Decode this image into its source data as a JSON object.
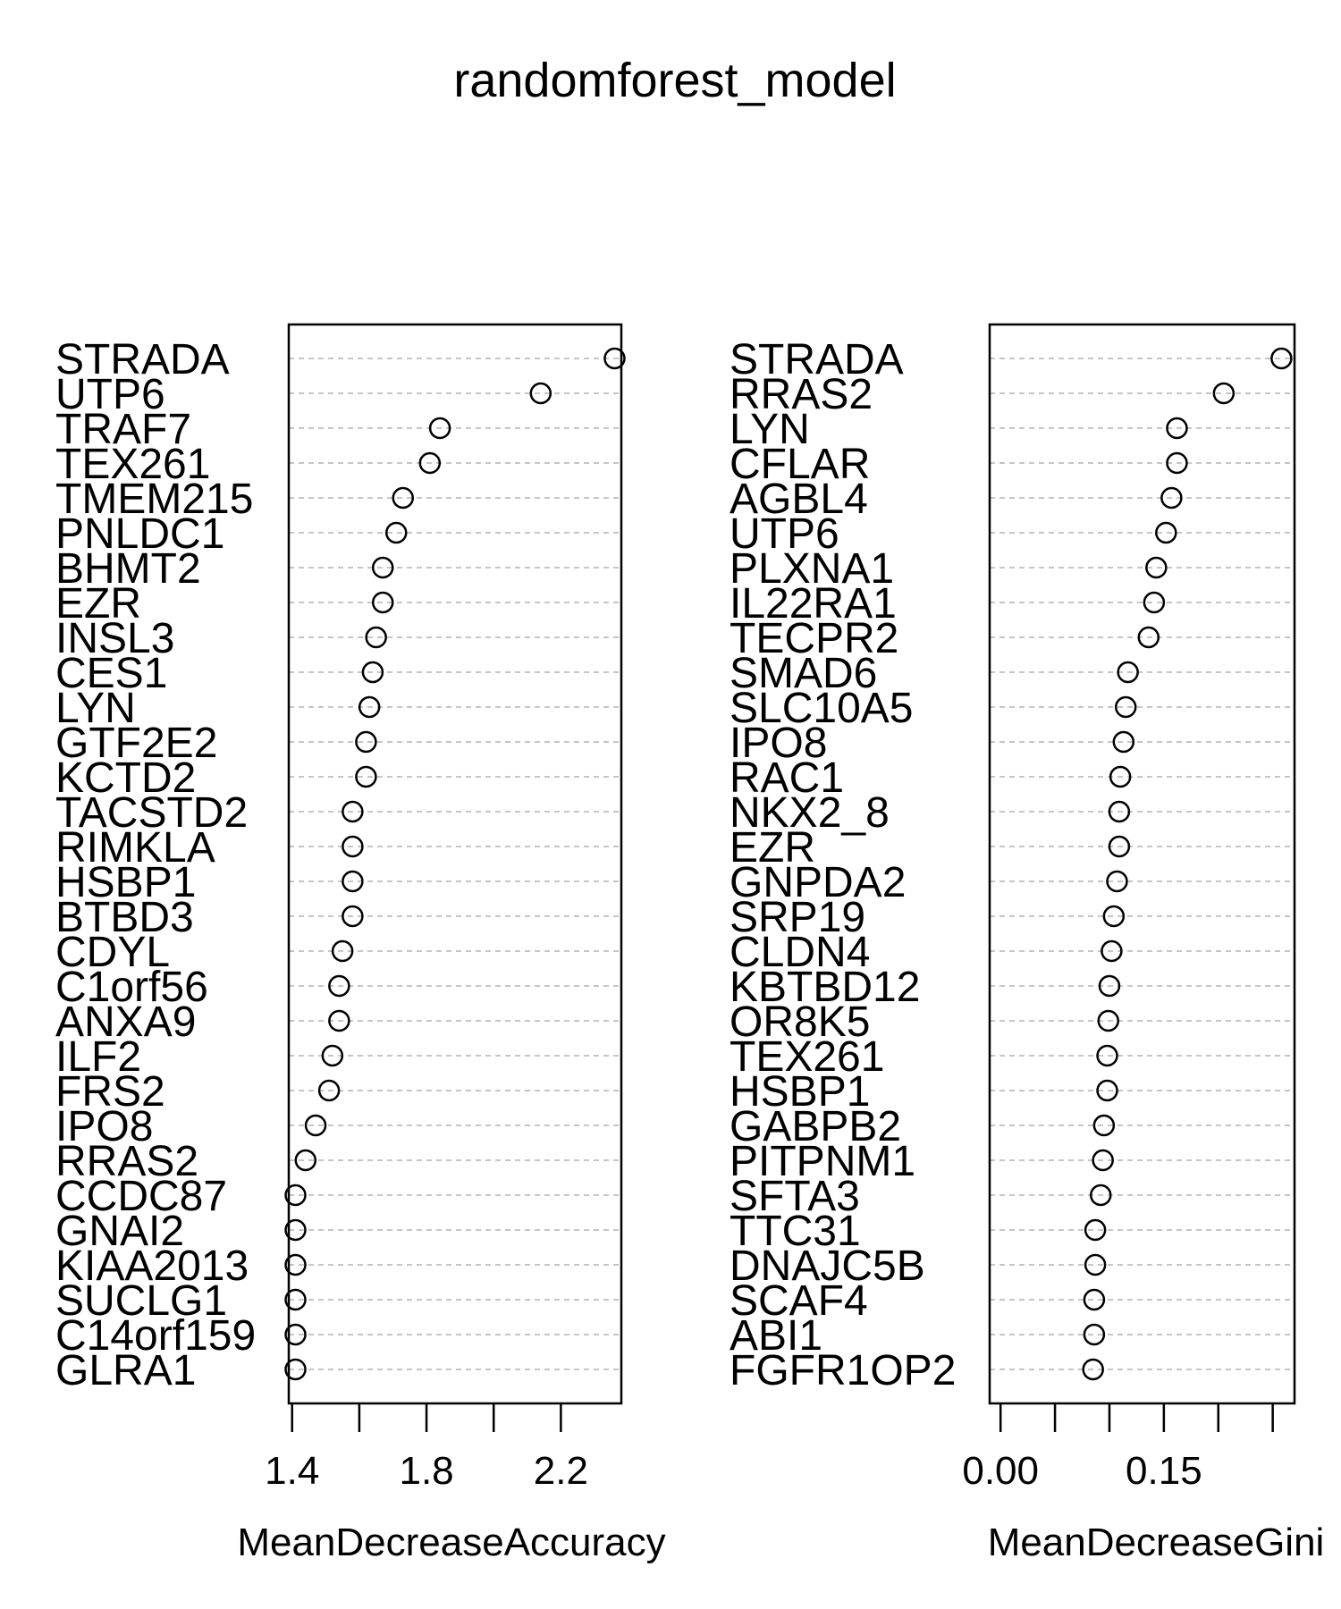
{
  "title": "randomforest_model",
  "chart_data": [
    {
      "type": "scatter",
      "xlabel": "MeanDecreaseAccuracy",
      "xlim": [
        1.39,
        2.38
      ],
      "xticks": [
        1.4,
        1.6,
        1.8,
        2.0,
        2.2
      ],
      "xtick_labels": [
        "1.4",
        "1.8",
        "2.2"
      ],
      "grid": "dashed-horizontal",
      "categories": [
        "STRADA",
        "UTP6",
        "TRAF7",
        "TEX261",
        "TMEM215",
        "PNLDC1",
        "BHMT2",
        "EZR",
        "INSL3",
        "CES1",
        "LYN",
        "GTF2E2",
        "KCTD2",
        "TACSTD2",
        "RIMKLA",
        "HSBP1",
        "BTBD3",
        "CDYL",
        "C1orf56",
        "ANXA9",
        "ILF2",
        "FRS2",
        "IPO8",
        "RRAS2",
        "CCDC87",
        "GNAI2",
        "KIAA2013",
        "SUCLG1",
        "C14orf159",
        "GLRA1"
      ],
      "values": [
        2.36,
        2.14,
        1.84,
        1.81,
        1.73,
        1.71,
        1.67,
        1.67,
        1.65,
        1.64,
        1.63,
        1.62,
        1.62,
        1.58,
        1.58,
        1.58,
        1.58,
        1.55,
        1.54,
        1.54,
        1.52,
        1.51,
        1.47,
        1.44,
        1.41,
        1.41,
        1.41,
        1.41,
        1.41,
        1.41
      ]
    },
    {
      "type": "scatter",
      "xlabel": "MeanDecreaseGini",
      "xlim": [
        -0.01,
        0.27
      ],
      "xticks": [
        0.0,
        0.05,
        0.1,
        0.15,
        0.2,
        0.25
      ],
      "xtick_labels": [
        "0.00",
        "0.15"
      ],
      "grid": "dashed-horizontal",
      "categories": [
        "STRADA",
        "RRAS2",
        "LYN",
        "CFLAR",
        "AGBL4",
        "UTP6",
        "PLXNA1",
        "IL22RA1",
        "TECPR2",
        "SMAD6",
        "SLC10A5",
        "IPO8",
        "RAC1",
        "NKX2_8",
        "EZR",
        "GNPDA2",
        "SRP19",
        "CLDN4",
        "KBTBD12",
        "OR8K5",
        "TEX261",
        "HSBP1",
        "GABPB2",
        "PITPNM1",
        "SFTA3",
        "TTC31",
        "DNAJC5B",
        "SCAF4",
        "ABI1",
        "FGFR1OP2"
      ],
      "values": [
        0.258,
        0.205,
        0.162,
        0.162,
        0.157,
        0.152,
        0.143,
        0.141,
        0.136,
        0.117,
        0.115,
        0.113,
        0.11,
        0.109,
        0.109,
        0.107,
        0.104,
        0.102,
        0.1,
        0.099,
        0.098,
        0.098,
        0.095,
        0.094,
        0.092,
        0.087,
        0.087,
        0.086,
        0.086,
        0.085
      ]
    }
  ]
}
